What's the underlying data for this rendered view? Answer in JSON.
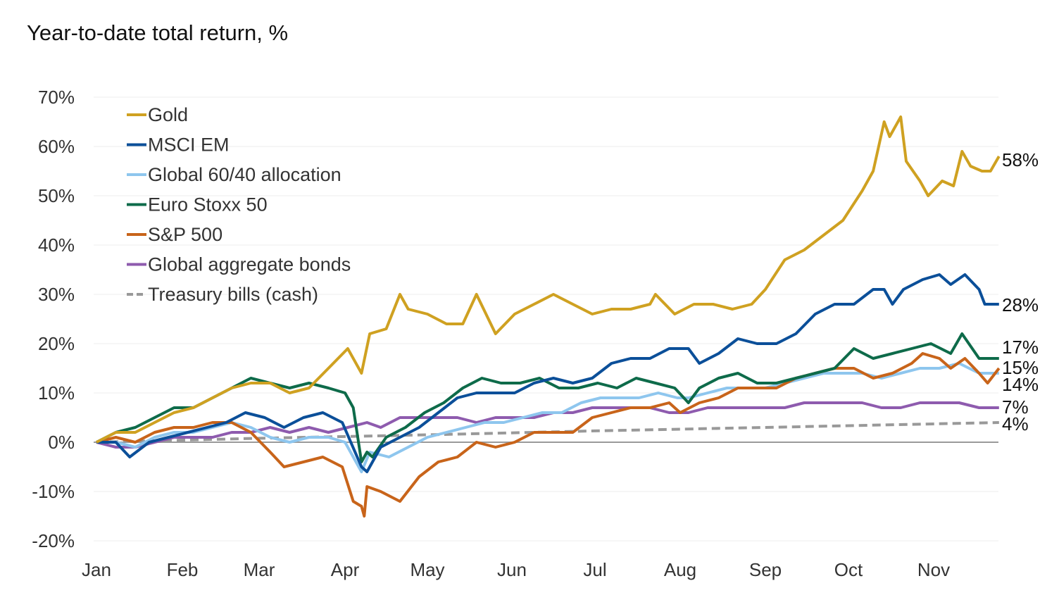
{
  "chart_data": {
    "type": "line",
    "title": "Year-to-date total return, %",
    "xlabel": "",
    "ylabel": "",
    "ylim": [
      -20,
      70
    ],
    "yticks": [
      "70%",
      "60%",
      "50%",
      "40%",
      "30%",
      "20%",
      "10%",
      "0%",
      "-10%",
      "-20%"
    ],
    "ytick_values": [
      70,
      60,
      50,
      40,
      30,
      20,
      10,
      0,
      -10,
      -20
    ],
    "xticks": [
      "Jan",
      "Feb",
      "Mar",
      "Apr",
      "May",
      "Jun",
      "Jul",
      "Aug",
      "Sep",
      "Oct",
      "Nov"
    ],
    "grid": "horizontal",
    "legend": "top-left",
    "series": [
      {
        "name": "Gold",
        "color": "#CFA121",
        "dashed": false,
        "end_label": "58%",
        "x": [
          "01-01",
          "01-08",
          "01-15",
          "01-22",
          "01-29",
          "02-05",
          "02-12",
          "02-19",
          "02-26",
          "03-05",
          "03-12",
          "03-19",
          "03-26",
          "04-02",
          "04-07",
          "04-10",
          "04-16",
          "04-21",
          "04-24",
          "05-01",
          "05-08",
          "05-14",
          "05-19",
          "05-26",
          "06-02",
          "06-09",
          "06-16",
          "06-23",
          "06-30",
          "07-07",
          "07-14",
          "07-21",
          "07-23",
          "07-30",
          "08-06",
          "08-13",
          "08-20",
          "08-27",
          "09-01",
          "09-08",
          "09-15",
          "09-22",
          "09-29",
          "10-06",
          "10-10",
          "10-14",
          "10-16",
          "10-20",
          "10-22",
          "10-27",
          "10-30",
          "11-04",
          "11-08",
          "11-11",
          "11-14",
          "11-18",
          "11-21",
          "11-24"
        ],
        "y": [
          0,
          2,
          2,
          4,
          6,
          7,
          9,
          11,
          12,
          12,
          10,
          11,
          15,
          19,
          14,
          22,
          23,
          30,
          27,
          26,
          24,
          24,
          30,
          22,
          26,
          28,
          30,
          28,
          26,
          27,
          27,
          28,
          30,
          26,
          28,
          28,
          27,
          28,
          31,
          37,
          39,
          42,
          45,
          51,
          55,
          65,
          62,
          66,
          57,
          53,
          50,
          53,
          52,
          59,
          56,
          55,
          55,
          58
        ]
      },
      {
        "name": "MSCI EM",
        "color": "#0B4F99",
        "dashed": false,
        "end_label": "28%",
        "x": [
          "01-01",
          "01-08",
          "01-13",
          "01-20",
          "01-27",
          "02-03",
          "02-10",
          "02-17",
          "02-24",
          "03-03",
          "03-10",
          "03-17",
          "03-24",
          "03-31",
          "04-07",
          "04-09",
          "04-14",
          "04-21",
          "04-28",
          "05-05",
          "05-12",
          "05-19",
          "05-26",
          "06-02",
          "06-09",
          "06-16",
          "06-23",
          "06-30",
          "07-07",
          "07-14",
          "07-21",
          "07-28",
          "08-04",
          "08-08",
          "08-15",
          "08-22",
          "08-29",
          "09-05",
          "09-12",
          "09-19",
          "09-26",
          "10-03",
          "10-10",
          "10-14",
          "10-17",
          "10-21",
          "10-28",
          "11-03",
          "11-07",
          "11-12",
          "11-17",
          "11-19",
          "11-24"
        ],
        "y": [
          0,
          0,
          -3,
          0,
          1,
          2,
          3,
          4,
          6,
          5,
          3,
          5,
          6,
          4,
          -5,
          -6,
          -1,
          1,
          3,
          6,
          9,
          10,
          10,
          10,
          12,
          13,
          12,
          13,
          16,
          17,
          17,
          19,
          19,
          16,
          18,
          21,
          20,
          20,
          22,
          26,
          28,
          28,
          31,
          31,
          28,
          31,
          33,
          34,
          32,
          34,
          31,
          28,
          28
        ]
      },
      {
        "name": "Global 60/40 allocation",
        "color": "#8EC6EE",
        "dashed": false,
        "end_label": "14%",
        "x": [
          "01-01",
          "01-08",
          "01-15",
          "01-22",
          "01-29",
          "02-05",
          "02-12",
          "02-19",
          "02-26",
          "03-05",
          "03-12",
          "03-19",
          "03-26",
          "04-01",
          "04-04",
          "04-07",
          "04-10",
          "04-17",
          "04-24",
          "05-01",
          "05-08",
          "05-15",
          "05-22",
          "05-29",
          "06-05",
          "06-12",
          "06-19",
          "06-26",
          "07-03",
          "07-10",
          "07-17",
          "07-24",
          "07-31",
          "08-04",
          "08-11",
          "08-18",
          "08-25",
          "09-01",
          "09-08",
          "09-15",
          "09-22",
          "09-29",
          "10-06",
          "10-13",
          "10-20",
          "10-27",
          "11-03",
          "11-10",
          "11-17",
          "11-24"
        ],
        "y": [
          0,
          0,
          -1,
          1,
          2,
          2,
          3,
          4,
          3,
          1,
          0,
          1,
          1,
          0,
          -3,
          -6,
          -2,
          -3,
          -1,
          1,
          2,
          3,
          4,
          4,
          5,
          6,
          6,
          8,
          9,
          9,
          9,
          10,
          9,
          9,
          10,
          11,
          11,
          11,
          12,
          13,
          14,
          14,
          14,
          13,
          14,
          15,
          15,
          16,
          14,
          14
        ]
      },
      {
        "name": "Euro Stoxx 50",
        "color": "#0E6B4A",
        "dashed": false,
        "end_label": "17%",
        "x": [
          "01-01",
          "01-08",
          "01-15",
          "01-22",
          "01-29",
          "02-05",
          "02-12",
          "02-19",
          "02-26",
          "03-05",
          "03-12",
          "03-19",
          "03-26",
          "04-01",
          "04-04",
          "04-07",
          "04-09",
          "04-11",
          "04-16",
          "04-23",
          "04-30",
          "05-07",
          "05-14",
          "05-21",
          "05-28",
          "06-04",
          "06-11",
          "06-18",
          "06-25",
          "07-02",
          "07-09",
          "07-16",
          "07-23",
          "07-30",
          "08-04",
          "08-08",
          "08-15",
          "08-22",
          "08-29",
          "09-05",
          "09-12",
          "09-19",
          "09-26",
          "10-03",
          "10-10",
          "10-17",
          "10-24",
          "10-31",
          "11-07",
          "11-11",
          "11-17",
          "11-24"
        ],
        "y": [
          0,
          2,
          3,
          5,
          7,
          7,
          9,
          11,
          13,
          12,
          11,
          12,
          11,
          10,
          7,
          -4,
          -2,
          -3,
          1,
          3,
          6,
          8,
          11,
          13,
          12,
          12,
          13,
          11,
          11,
          12,
          11,
          13,
          12,
          11,
          8,
          11,
          13,
          14,
          12,
          12,
          13,
          14,
          15,
          19,
          17,
          18,
          19,
          20,
          18,
          22,
          17,
          17
        ]
      },
      {
        "name": "S&P 500",
        "color": "#C8641A",
        "dashed": false,
        "end_label": "15%",
        "x": [
          "01-01",
          "01-08",
          "01-15",
          "01-22",
          "01-29",
          "02-05",
          "02-12",
          "02-19",
          "02-26",
          "03-05",
          "03-10",
          "03-17",
          "03-24",
          "03-31",
          "04-04",
          "04-07",
          "04-08",
          "04-09",
          "04-14",
          "04-21",
          "04-28",
          "05-05",
          "05-12",
          "05-19",
          "05-26",
          "06-02",
          "06-09",
          "06-16",
          "06-23",
          "06-30",
          "07-07",
          "07-14",
          "07-21",
          "07-28",
          "08-01",
          "08-08",
          "08-15",
          "08-22",
          "08-29",
          "09-05",
          "09-12",
          "09-19",
          "09-26",
          "10-03",
          "10-10",
          "10-17",
          "10-24",
          "10-28",
          "11-03",
          "11-07",
          "11-12",
          "11-17",
          "11-20",
          "11-24"
        ],
        "y": [
          0,
          1,
          0,
          2,
          3,
          3,
          4,
          4,
          2,
          -2,
          -5,
          -4,
          -3,
          -5,
          -12,
          -13,
          -15,
          -9,
          -10,
          -12,
          -7,
          -4,
          -3,
          0,
          -1,
          0,
          2,
          2,
          2,
          5,
          6,
          7,
          7,
          8,
          6,
          8,
          9,
          11,
          11,
          11,
          13,
          14,
          15,
          15,
          13,
          14,
          16,
          18,
          17,
          15,
          17,
          14,
          12,
          15
        ]
      },
      {
        "name": "Global aggregate bonds",
        "color": "#8E5BAE",
        "dashed": false,
        "end_label": "7%",
        "x": [
          "01-01",
          "01-08",
          "01-15",
          "01-22",
          "01-29",
          "02-05",
          "02-12",
          "02-19",
          "02-26",
          "03-05",
          "03-12",
          "03-19",
          "03-26",
          "04-02",
          "04-09",
          "04-14",
          "04-21",
          "04-28",
          "05-05",
          "05-12",
          "05-19",
          "05-26",
          "06-02",
          "06-09",
          "06-16",
          "06-23",
          "06-30",
          "07-07",
          "07-14",
          "07-21",
          "07-28",
          "08-04",
          "08-11",
          "08-18",
          "08-25",
          "09-01",
          "09-08",
          "09-15",
          "09-22",
          "09-29",
          "10-06",
          "10-13",
          "10-20",
          "10-27",
          "11-03",
          "11-10",
          "11-17",
          "11-24"
        ],
        "y": [
          0,
          -1,
          -1,
          0,
          1,
          1,
          1,
          2,
          2,
          3,
          2,
          3,
          2,
          3,
          4,
          3,
          5,
          5,
          5,
          5,
          4,
          5,
          5,
          5,
          6,
          6,
          7,
          7,
          7,
          7,
          6,
          6,
          7,
          7,
          7,
          7,
          7,
          8,
          8,
          8,
          8,
          7,
          7,
          8,
          8,
          8,
          7,
          7
        ]
      },
      {
        "name": "Treasury bills (cash)",
        "color": "#999999",
        "dashed": true,
        "end_label": "4%",
        "x": [
          "01-01",
          "03-01",
          "05-01",
          "07-01",
          "09-01",
          "11-24"
        ],
        "y": [
          0,
          0.8,
          1.5,
          2.3,
          3.0,
          4
        ]
      }
    ]
  }
}
